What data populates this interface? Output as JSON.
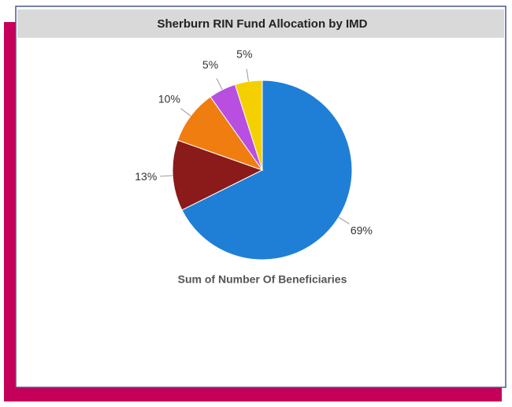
{
  "chart_data": {
    "type": "pie",
    "title": "Sherburn RIN Fund Allocation by IMD",
    "values": [
      69,
      13,
      10,
      5,
      5
    ],
    "value_labels": [
      "69%",
      "13%",
      "10%",
      "5%",
      "5%"
    ],
    "colors": [
      "#1f7fd6",
      "#8b1a1a",
      "#f07d10",
      "#b84fe0",
      "#f5d000"
    ],
    "annotation": "Sum of Number Of Beneficiaries"
  }
}
